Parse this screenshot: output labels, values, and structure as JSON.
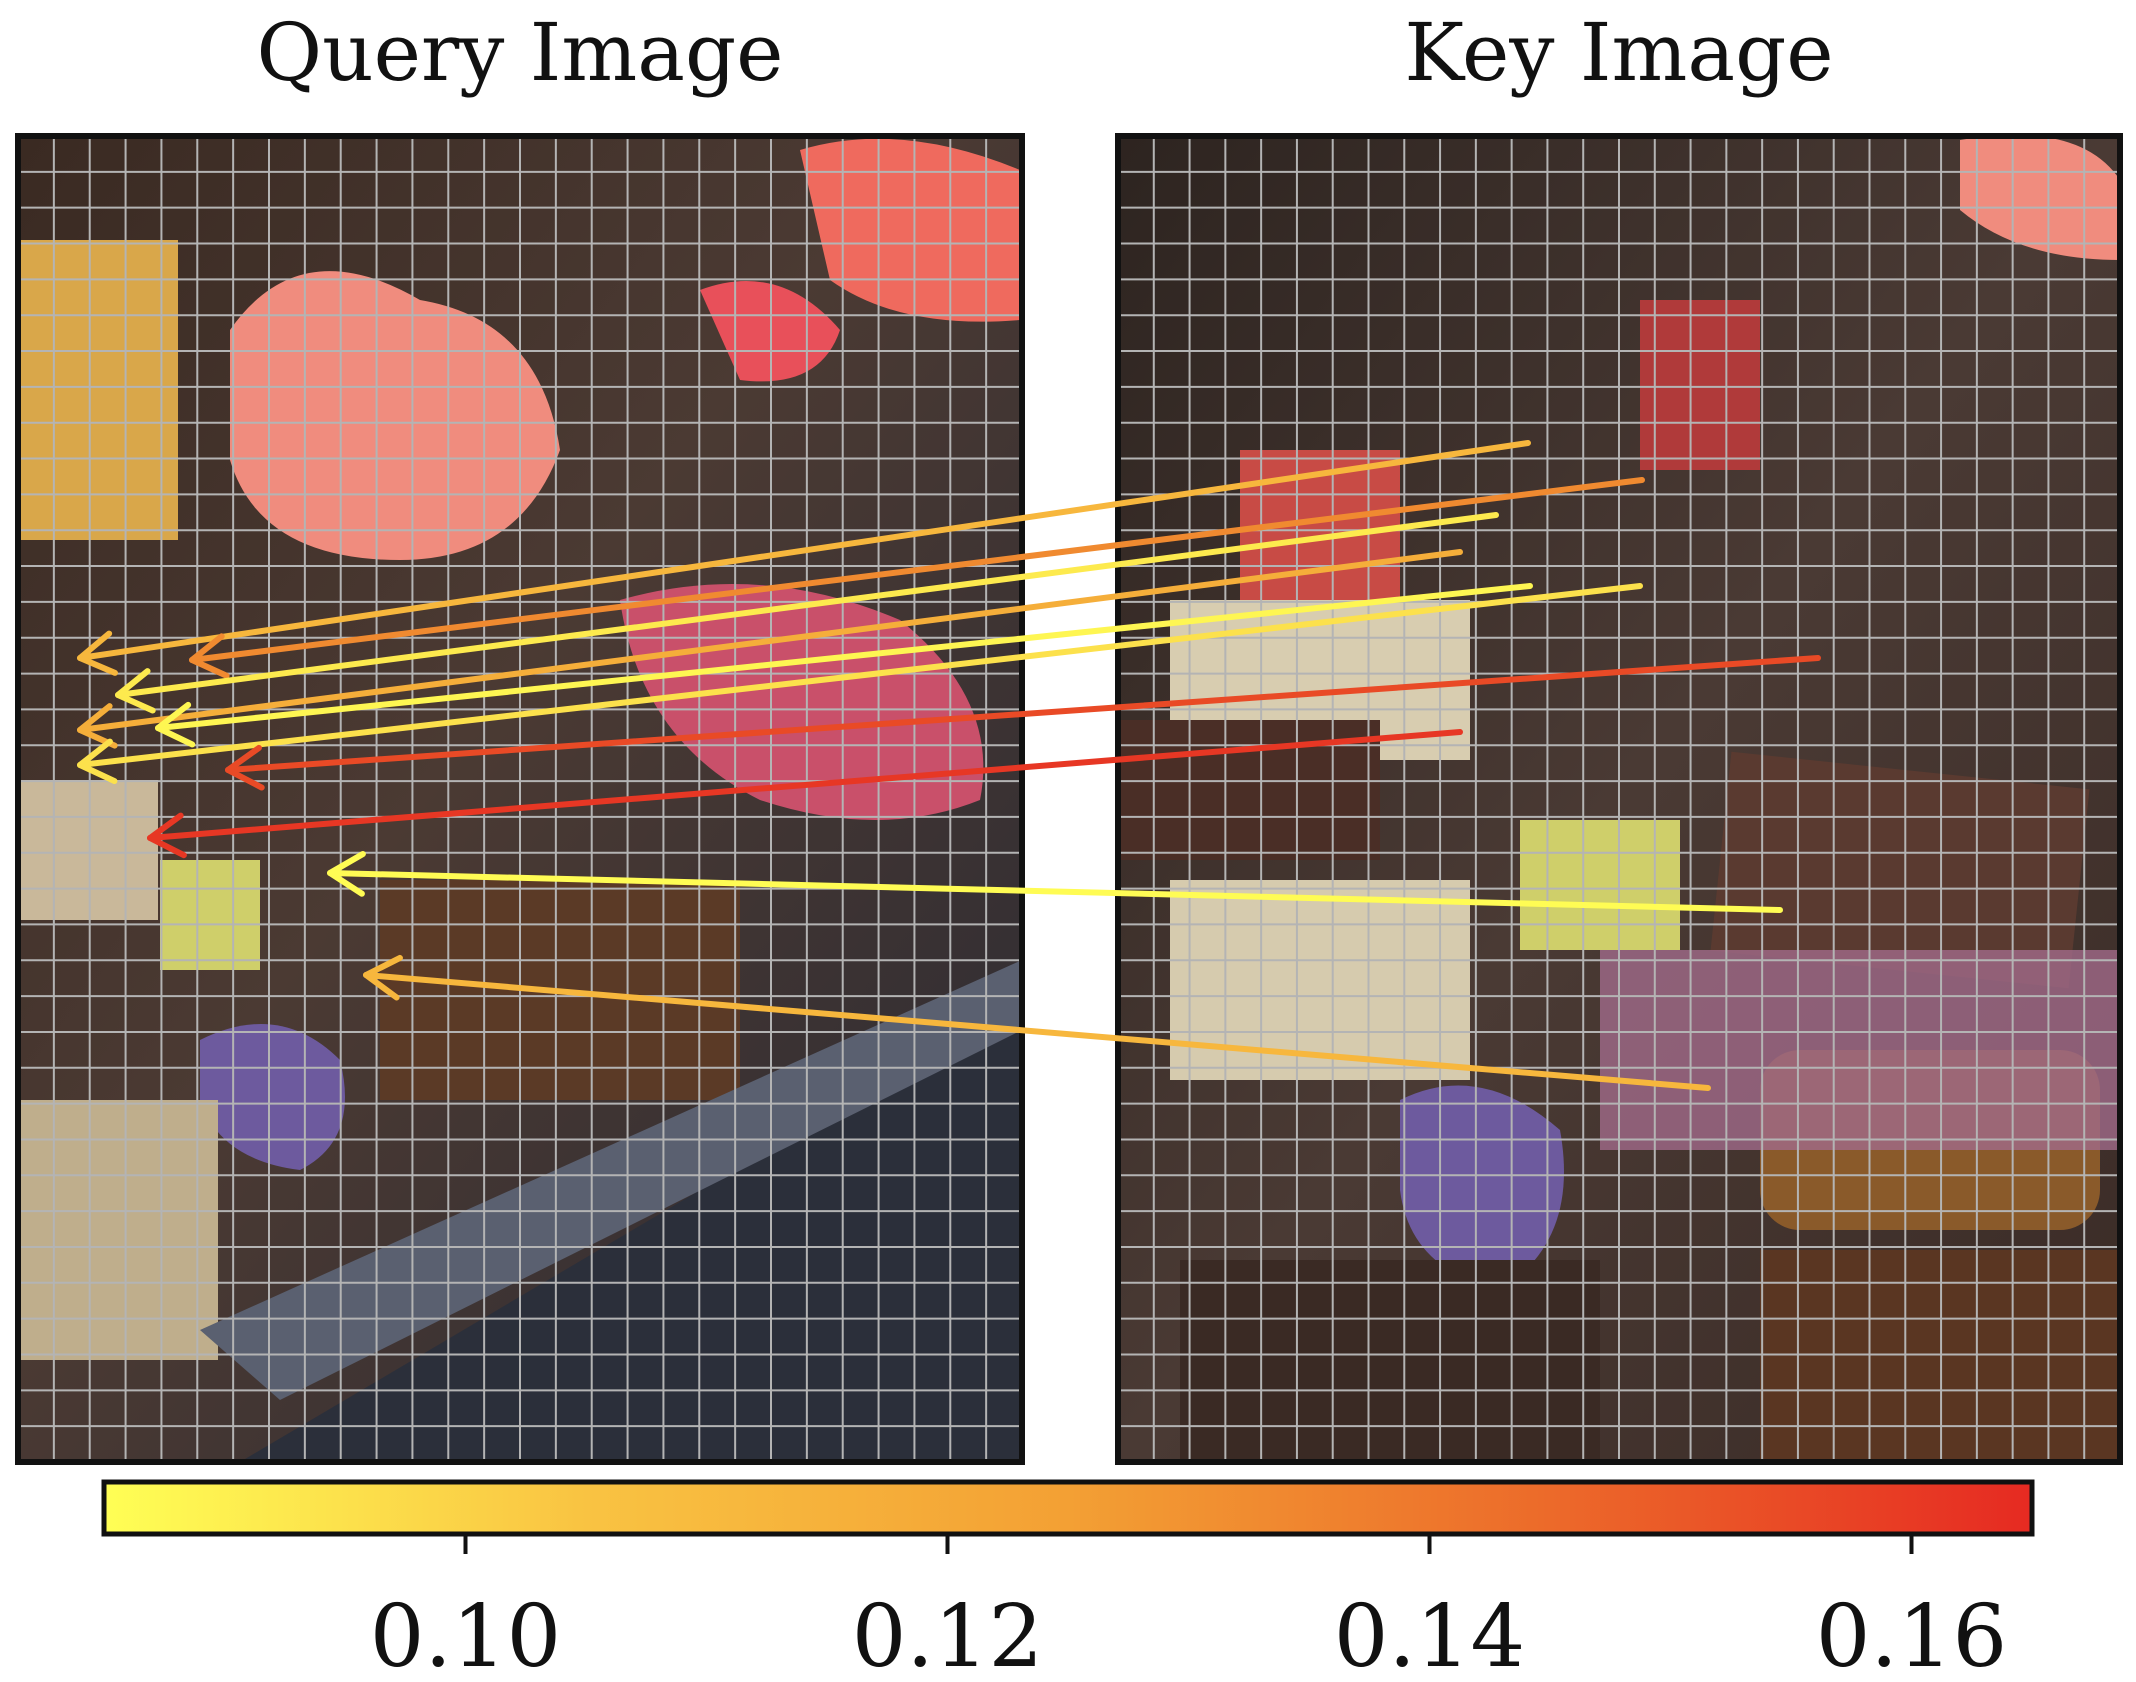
{
  "panels": {
    "query_title": "Query Image",
    "key_title": "Key Image"
  },
  "colorbar": {
    "range": [
      0.085,
      0.165
    ],
    "colormap": [
      "#ffff55",
      "#f9c342",
      "#f3a034",
      "#ec6a2a",
      "#e62a22"
    ],
    "ticks": [
      {
        "value": 0.1,
        "label": "0.10"
      },
      {
        "value": 0.12,
        "label": "0.12"
      },
      {
        "value": 0.14,
        "label": "0.14"
      },
      {
        "value": 0.16,
        "label": "0.16"
      }
    ]
  },
  "grid": {
    "columns": 28,
    "rows": 37,
    "line_color": "#b4b4b4"
  },
  "correspondences": [
    {
      "score": 0.112
    },
    {
      "score": 0.133
    },
    {
      "score": 0.092
    },
    {
      "score": 0.117
    },
    {
      "score": 0.088
    },
    {
      "score": 0.095
    },
    {
      "score": 0.155
    },
    {
      "score": 0.161
    },
    {
      "score": 0.086
    },
    {
      "score": 0.112
    }
  ]
}
